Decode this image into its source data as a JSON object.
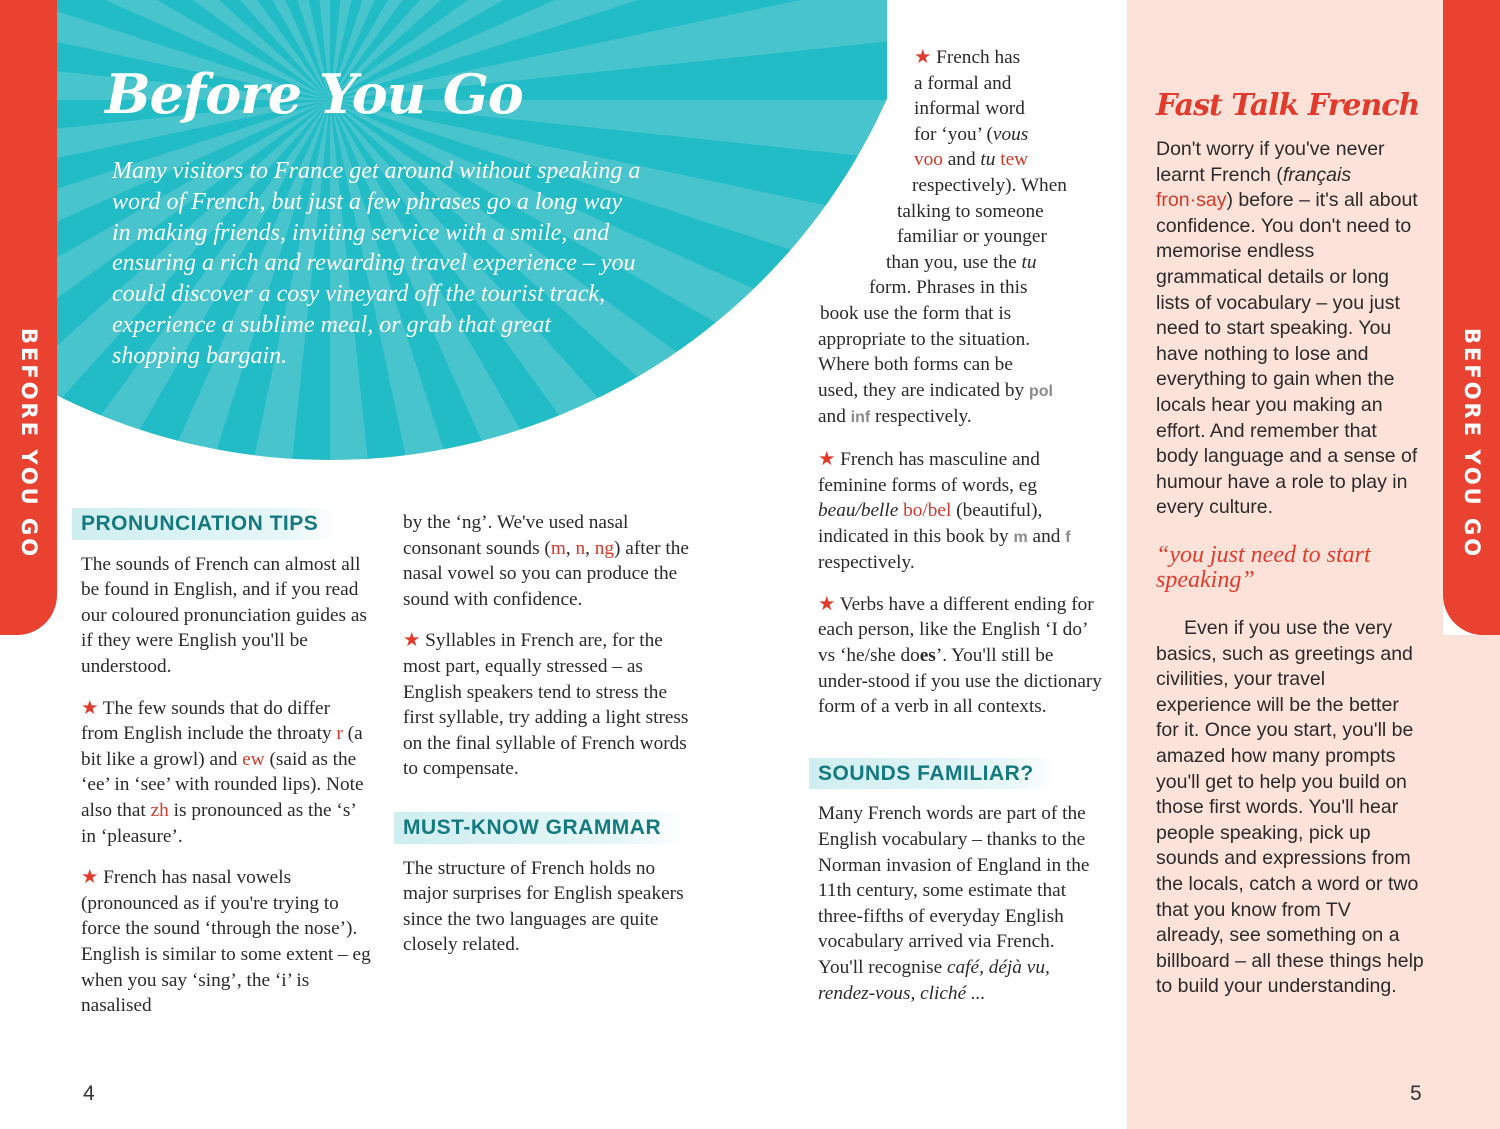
{
  "colors": {
    "accent_red": "#ea4231",
    "teal": "#22bcc7",
    "heading_teal": "#157a80",
    "panel_pink": "#fde2d9"
  },
  "tab_label": "BEFORE YOU GO",
  "title": "Before You Go",
  "intro": "Many visitors to France get around without speaking a word of French, but just a few phrases go a long way in making friends, inviting service with a smile, and ensuring a rich and rewarding travel experience – you could discover a cosy vineyard off the tourist track, experience a sublime meal, or grab that great shopping bargain.",
  "star": "★",
  "col1": {
    "heading": "PRONUNCIATION TIPS",
    "paras": [
      {
        "star": false,
        "segs": [
          [
            "The sounds of French can almost all be found in English, and if you read our coloured pronunciation guides as if they were English you'll be understood.",
            ""
          ]
        ]
      },
      {
        "star": true,
        "segs": [
          [
            "The few sounds that do differ from English include the throaty ",
            ""
          ],
          [
            "r",
            "r"
          ],
          [
            " (a bit like a growl) and ",
            ""
          ],
          [
            "ew",
            "r"
          ],
          [
            " (said as the ‘ee’ in ‘see’ with rounded lips). Note also that ",
            ""
          ],
          [
            "zh",
            "r"
          ],
          [
            " is pronounced as the ‘s’ in ‘pleasure’.",
            ""
          ]
        ]
      },
      {
        "star": true,
        "segs": [
          [
            "French has nasal vowels (pronounced as if you're trying to force the sound ‘through the nose’). English is similar to some extent – eg when you say ‘sing’, the ‘i’ is nasalised",
            ""
          ]
        ]
      }
    ]
  },
  "col2": {
    "paras": [
      {
        "star": false,
        "segs": [
          [
            "by the ‘ng’. We've used nasal consonant sounds (",
            ""
          ],
          [
            "m",
            "r"
          ],
          [
            ", ",
            ""
          ],
          [
            "n",
            "r"
          ],
          [
            ", ",
            ""
          ],
          [
            "ng",
            "r"
          ],
          [
            ") after the nasal vowel so you can produce the sound with confidence.",
            ""
          ]
        ]
      },
      {
        "star": true,
        "segs": [
          [
            "Syllables in French are, for the most part, equally stressed – as English speakers tend to stress the first syllable, try adding a light stress on the final syllable of French words to compensate.",
            ""
          ]
        ]
      }
    ],
    "heading": "MUST-KNOW GRAMMAR",
    "paras2": [
      {
        "star": false,
        "segs": [
          [
            "The structure of French holds no major surprises for English speakers since the two languages are quite closely related.",
            ""
          ]
        ]
      }
    ]
  },
  "col3": {
    "first_lines": [
      [
        [
          "★ ",
          "star"
        ],
        [
          "French has",
          ""
        ]
      ],
      [
        [
          "a formal and",
          ""
        ]
      ],
      [
        [
          "informal word",
          ""
        ]
      ],
      [
        [
          "for ‘you’ (",
          ""
        ],
        [
          "vous",
          "i"
        ]
      ],
      [
        [
          "voo",
          "r"
        ],
        [
          " and ",
          ""
        ],
        [
          "tu",
          "i"
        ],
        [
          " ",
          ""
        ],
        [
          "tew",
          "r"
        ]
      ],
      [
        [
          "respectively). When",
          ""
        ]
      ],
      [
        [
          "talking to someone",
          ""
        ]
      ],
      [
        [
          "familiar or younger",
          ""
        ]
      ],
      [
        [
          "than you, use the ",
          ""
        ],
        [
          "tu",
          "i"
        ]
      ],
      [
        [
          "form. Phrases in this",
          ""
        ]
      ],
      [
        [
          "book use the form that is",
          ""
        ]
      ],
      [
        [
          "appropriate to the situation.",
          ""
        ]
      ],
      [
        [
          "Where both forms can be",
          ""
        ]
      ],
      [
        [
          "used, they are indicated by ",
          ""
        ],
        [
          "pol",
          "g"
        ]
      ],
      [
        [
          "and ",
          ""
        ],
        [
          "inf",
          "g"
        ],
        [
          " respectively.",
          ""
        ]
      ]
    ],
    "paras": [
      {
        "star": true,
        "segs": [
          [
            "French has masculine and feminine forms of words, eg ",
            ""
          ],
          [
            "beau/belle",
            "i"
          ],
          [
            " ",
            ""
          ],
          [
            "bo/bel",
            "r"
          ],
          [
            " (beautiful), indicated in this book by ",
            ""
          ],
          [
            "m",
            "g"
          ],
          [
            " and ",
            ""
          ],
          [
            "f",
            "g"
          ],
          [
            " respectively.",
            ""
          ]
        ]
      },
      {
        "star": true,
        "segs": [
          [
            "Verbs have a different ending for each person, like the English ‘I do’ vs ‘he/she do",
            ""
          ],
          [
            "es",
            "b"
          ],
          [
            "’. You'll still be under-stood if you use the dictionary form of a verb in all contexts.",
            ""
          ]
        ]
      }
    ],
    "heading": "SOUNDS FAMILIAR?",
    "paras2": [
      {
        "star": false,
        "segs": [
          [
            "Many French words are part of the English vocabulary – thanks to the Norman invasion of England in the 11th century, some estimate that three-fifths of everyday English vocabulary arrived via French. You'll recognise ",
            ""
          ],
          [
            "café, déjà vu, rendez-vous, cliché ...",
            "i"
          ]
        ]
      }
    ]
  },
  "panel": {
    "title": "Fast Talk French",
    "para1": {
      "segs": [
        [
          "Don't worry if you've never learnt French (",
          ""
        ],
        [
          "français",
          "i"
        ],
        [
          " ",
          ""
        ],
        [
          "fron·say",
          "r"
        ],
        [
          ") before – it's all about confidence. You don't need to memorise endless grammatical details or long lists of vocabulary – you just need to start speaking. You have nothing to lose and everything to gain when the locals hear you making an effort. And remember that body language and a sense of humour have a role to play in every culture.",
          ""
        ]
      ]
    },
    "quote": "“you just need to start speaking”",
    "para2": {
      "segs": [
        [
          "Even if you use the very basics, such as greetings and civilities, your travel experience will be the better for it. Once you start, you'll be amazed how many prompts you'll get to help you build on those first words. You'll hear people speaking, pick up sounds and expressions from the locals, catch a word or two that you know from TV already, see something on a billboard – all these things help to build your understanding.",
          ""
        ]
      ]
    }
  },
  "page_numbers": {
    "left": "4",
    "right": "5"
  }
}
